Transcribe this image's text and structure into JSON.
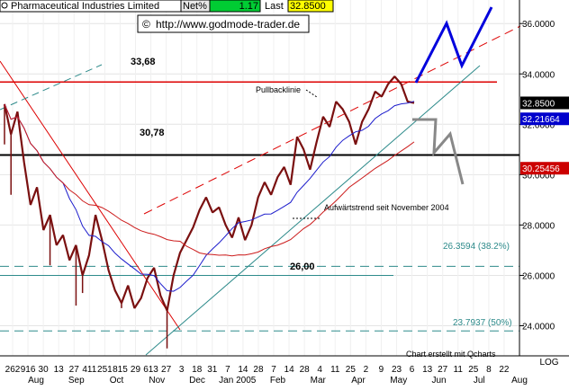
{
  "header": {
    "instrument": "Pharmaceutical Industries Limited",
    "net_label": "Net%",
    "net_value": "1.17",
    "last_label": "Last",
    "last_value": "32.8500",
    "url": "http://www.godmode-trader.de"
  },
  "chart_data": {
    "type": "candlestick",
    "y_axis": {
      "range": [
        22.8,
        37.0
      ],
      "scale": "linear",
      "side": "right",
      "ticks": [
        "24.0000",
        "26.0000",
        "28.0000",
        "30.0000",
        "32.0000",
        "34.0000",
        "36.0000"
      ],
      "tick_values": [
        24,
        26,
        28,
        30,
        32,
        34,
        36
      ],
      "label": "LOG"
    },
    "x_axis": {
      "day_labels": [
        "262",
        "916",
        "30",
        "13",
        "27",
        "411",
        "251",
        "815",
        "29",
        "613",
        "27",
        "3",
        "18",
        "31",
        "7",
        "14",
        "28",
        "7",
        "14",
        "28",
        "4",
        "11",
        "25",
        "2",
        "9",
        "23",
        "6",
        "13",
        "27",
        "11",
        "25",
        "8",
        "22"
      ],
      "month_labels": [
        "Aug",
        "Sep",
        "Oct",
        "Nov",
        "Dec",
        "Jan 2005",
        "Feb",
        "Mar",
        "Apr",
        "May",
        "Jun",
        "Jul",
        "Aug"
      ]
    },
    "grid": true,
    "price_path": [
      [
        0,
        32.8
      ],
      [
        2,
        31.6
      ],
      [
        4,
        32.5
      ],
      [
        6,
        30.5
      ],
      [
        8,
        28.8
      ],
      [
        10,
        29.5
      ],
      [
        12,
        27.8
      ],
      [
        14,
        28.4
      ],
      [
        16,
        27.2
      ],
      [
        18,
        27.6
      ],
      [
        20,
        26.6
      ],
      [
        22,
        27.2
      ],
      [
        24,
        26.0
      ],
      [
        26,
        26.8
      ],
      [
        28,
        28.4
      ],
      [
        30,
        27.4
      ],
      [
        32,
        26.2
      ],
      [
        34,
        25.4
      ],
      [
        36,
        24.9
      ],
      [
        38,
        25.6
      ],
      [
        40,
        24.7
      ],
      [
        42,
        25.1
      ],
      [
        44,
        25.9
      ],
      [
        46,
        26.3
      ],
      [
        48,
        25.2
      ],
      [
        50,
        24.6
      ],
      [
        52,
        26.0
      ],
      [
        54,
        26.9
      ],
      [
        56,
        27.4
      ],
      [
        58,
        27.9
      ],
      [
        60,
        28.6
      ],
      [
        62,
        29.1
      ],
      [
        64,
        28.5
      ],
      [
        66,
        28.7
      ],
      [
        68,
        28.0
      ],
      [
        70,
        27.5
      ],
      [
        72,
        28.3
      ],
      [
        74,
        27.4
      ],
      [
        76,
        28.0
      ],
      [
        78,
        29.1
      ],
      [
        80,
        29.7
      ],
      [
        82,
        29.2
      ],
      [
        84,
        29.9
      ],
      [
        86,
        30.3
      ],
      [
        88,
        29.6
      ],
      [
        90,
        31.5
      ],
      [
        92,
        31.0
      ],
      [
        94,
        30.2
      ],
      [
        96,
        31.3
      ],
      [
        98,
        32.3
      ],
      [
        100,
        31.9
      ],
      [
        102,
        32.9
      ],
      [
        104,
        32.6
      ],
      [
        106,
        32.1
      ],
      [
        108,
        31.2
      ],
      [
        110,
        32.1
      ],
      [
        112,
        32.6
      ],
      [
        114,
        33.3
      ],
      [
        116,
        33.1
      ],
      [
        118,
        33.6
      ],
      [
        120,
        33.9
      ],
      [
        122,
        33.6
      ],
      [
        124,
        32.9
      ],
      [
        126,
        32.85
      ]
    ],
    "price_spikes": [
      [
        0,
        31.2
      ],
      [
        2,
        29.2
      ],
      [
        14,
        26.4
      ],
      [
        22,
        24.8
      ],
      [
        24,
        25.3
      ],
      [
        36,
        24.7
      ],
      [
        50,
        23.1
      ]
    ],
    "overlays": [
      {
        "type": "horizontal",
        "label": "33,68",
        "value": 33.68,
        "color": "#dd0000"
      },
      {
        "type": "horizontal",
        "label": "30,78",
        "value": 30.78,
        "color": "#000000"
      },
      {
        "type": "horizontal",
        "label": "26,00",
        "value": 26.0,
        "color": "#2e8b8b"
      },
      {
        "type": "retracement",
        "label": "26.3594 (38.2%)",
        "value": 26.3594,
        "color": "#2e8b8b"
      },
      {
        "type": "retracement",
        "label": "23.7937 (50%)",
        "value": 23.7937,
        "color": "#2e8b8b"
      },
      {
        "type": "trendline",
        "label": "Pullbacklinie",
        "color": "#dd0000"
      },
      {
        "type": "trendline",
        "label": "Aufwärtstrend seit November 2004",
        "color": "#2e8b8b"
      }
    ],
    "price_tags": [
      {
        "value": 32.85,
        "label": "32.8500",
        "bg": "#000000",
        "fg": "#ffffff"
      },
      {
        "value": 32.21664,
        "label": "32.21664",
        "bg": "#0000cc",
        "fg": "#ffffff"
      },
      {
        "value": 30.25456,
        "label": "30.25456",
        "bg": "#cc0000",
        "fg": "#ffffff"
      }
    ],
    "credit": "Chart erstellt mit Qcharts",
    "colors": {
      "price": "#7a1010",
      "ma_fast": "#1c1ccc",
      "ma_slow": "#cc1c1c",
      "projection_up": "#0000dd",
      "projection_down": "#888888"
    }
  }
}
